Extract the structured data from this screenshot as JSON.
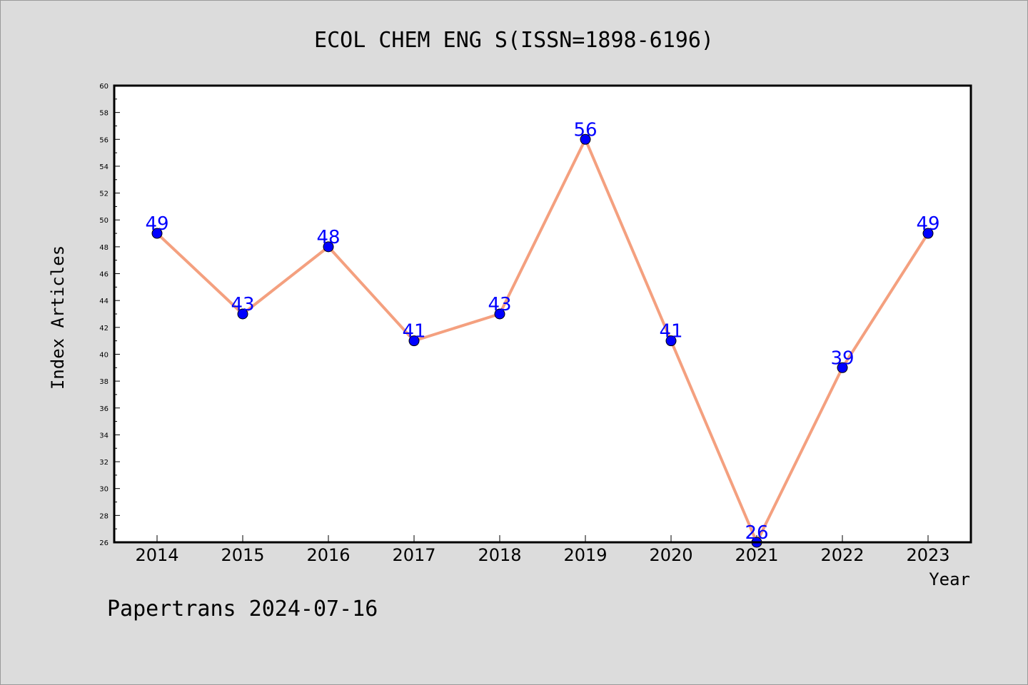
{
  "chart_data": {
    "type": "line",
    "title": "ECOL CHEM ENG S(ISSN=1898-6196)",
    "xlabel": "Year",
    "ylabel": "Index Articles",
    "categories": [
      "2014",
      "2015",
      "2016",
      "2017",
      "2018",
      "2019",
      "2020",
      "2021",
      "2022",
      "2023"
    ],
    "series": [
      {
        "values": [
          49,
          43,
          48,
          41,
          43,
          56,
          41,
          26,
          39,
          49
        ]
      }
    ],
    "ylim": [
      26,
      60
    ],
    "ytick_step": 2,
    "line_color": "#f4a07f",
    "marker_color": "#0000ff",
    "data_label_color": "#0000ff",
    "background_color": "#dcdcdc",
    "plot_background": "#ffffff",
    "grid": false,
    "legend": "none"
  },
  "footer": "Papertrans 2024-07-16"
}
